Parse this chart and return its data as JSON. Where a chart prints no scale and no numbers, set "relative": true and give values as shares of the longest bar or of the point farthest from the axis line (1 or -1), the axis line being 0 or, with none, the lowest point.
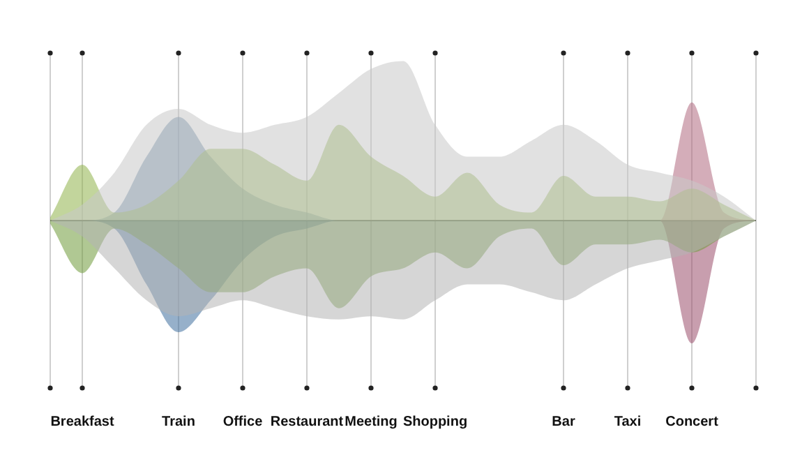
{
  "chart_data": {
    "type": "area",
    "relative": true,
    "legend": false,
    "grid": "x",
    "categories": [
      null,
      "Breakfast",
      null,
      null,
      "Train",
      null,
      "Office",
      null,
      "Restaurant",
      null,
      "Meeting",
      null,
      "Shopping",
      null,
      null,
      null,
      "Bar",
      null,
      "Taxi",
      null,
      "Concert",
      null,
      null
    ],
    "series": [
      {
        "color": "#c8c8c8",
        "values": [
          0,
          0.1,
          0.3,
          0.6,
          0.7,
          0.6,
          0.55,
          0.6,
          0.65,
          0.8,
          0.95,
          1,
          0.6,
          0.4,
          0.4,
          0.5,
          0.6,
          0.5,
          0.35,
          0.3,
          0.25,
          0.15,
          0
        ]
      },
      {
        "color": "#b4b4b4",
        "values": [
          0,
          -0.1,
          -0.3,
          -0.5,
          -0.6,
          -0.55,
          -0.5,
          -0.55,
          -0.6,
          -0.62,
          -0.6,
          -0.62,
          -0.5,
          -0.4,
          -0.4,
          -0.45,
          -0.5,
          -0.4,
          -0.3,
          -0.25,
          -0.2,
          -0.1,
          0
        ]
      },
      {
        "color": "#8fb34a",
        "values": [
          0.02,
          0.35,
          0.05,
          0.1,
          0.25,
          0.45,
          0.45,
          0.35,
          0.25,
          0.6,
          0.4,
          0.28,
          0.15,
          0.3,
          0.1,
          0.05,
          0.28,
          0.15,
          0.15,
          0.12,
          0.2,
          0.1,
          0
        ]
      },
      {
        "color": "#6f9a3a",
        "values": [
          -0.02,
          -0.33,
          -0.05,
          -0.15,
          -0.3,
          -0.45,
          -0.45,
          -0.35,
          -0.3,
          -0.55,
          -0.35,
          -0.3,
          -0.2,
          -0.3,
          -0.1,
          -0.05,
          -0.28,
          -0.15,
          -0.15,
          -0.12,
          -0.2,
          -0.1,
          0
        ]
      },
      {
        "color": "#5a7fa0",
        "values": [
          0,
          0,
          0.05,
          0.4,
          0.65,
          0.4,
          0.2,
          0.1,
          0.05,
          0,
          0,
          0,
          0,
          0,
          0,
          0,
          0,
          0,
          0,
          0,
          0,
          0,
          0
        ]
      },
      {
        "color": "#3f6f9e",
        "values": [
          0,
          0,
          -0.05,
          -0.4,
          -0.7,
          -0.5,
          -0.25,
          -0.1,
          -0.05,
          0,
          0,
          0,
          0,
          0,
          0,
          0,
          0,
          0,
          0,
          0,
          0,
          0,
          0
        ]
      },
      {
        "color": "#b06a80",
        "values": [
          0,
          0,
          0,
          0,
          0,
          0,
          0,
          0,
          0,
          0,
          0,
          0,
          0,
          0,
          0,
          0,
          0,
          0,
          0,
          0,
          0.74,
          0.05,
          0
        ]
      },
      {
        "color": "#9a4f6c",
        "values": [
          0,
          0,
          0,
          0,
          0,
          0,
          0,
          0,
          0,
          0,
          0,
          0,
          0,
          0,
          0,
          0,
          0,
          0,
          0,
          0,
          -0.77,
          -0.05,
          0
        ]
      }
    ]
  }
}
